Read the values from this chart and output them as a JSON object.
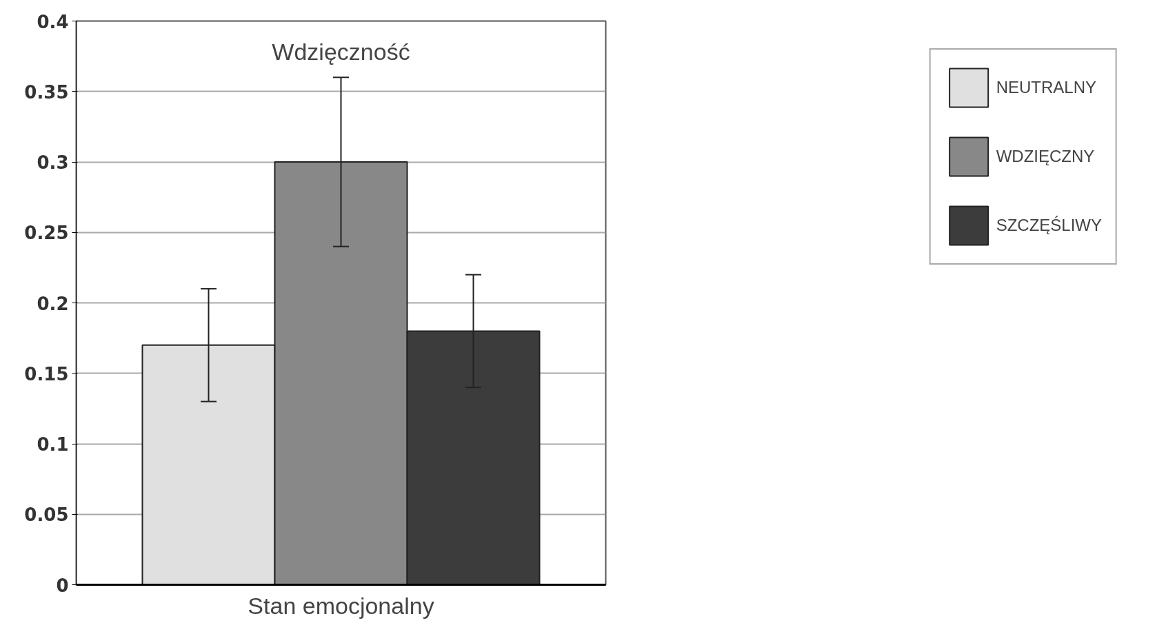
{
  "chart_data": {
    "type": "bar",
    "title": "Wdzięczność",
    "xlabel": "Stan emocjonalny",
    "categories": [
      null
    ],
    "series": [
      {
        "name": "NEUTRALNY",
        "color": "#e0e0e0",
        "values": [
          0.17
        ],
        "errors": [
          [
            0.13,
            0.21
          ]
        ]
      },
      {
        "name": "WDZIĘCZNY",
        "color": "#888888",
        "values": [
          0.3
        ],
        "errors": [
          [
            0.24,
            0.36
          ]
        ]
      },
      {
        "name": "SZCZĘŚLIWY",
        "color": "#3c3c3c",
        "values": [
          0.18
        ],
        "errors": [
          [
            0.14,
            0.22
          ]
        ]
      }
    ],
    "ylim": [
      0,
      0.4
    ],
    "yticks": [
      0,
      0.05,
      0.1,
      0.15,
      0.2,
      0.25,
      0.3,
      0.35,
      0.4
    ],
    "grid": "y",
    "legend": "top right",
    "tick_labels": "y"
  }
}
